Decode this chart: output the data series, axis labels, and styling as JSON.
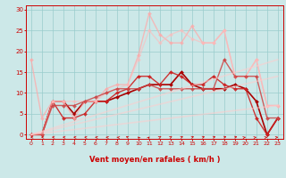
{
  "bg_color": "#cce8e8",
  "grid_color": "#99cccc",
  "xlabel": "Vent moyen/en rafales ( km/h )",
  "xlabel_color": "#cc0000",
  "tick_color": "#cc0000",
  "xlim": [
    -0.5,
    23.5
  ],
  "ylim": [
    -1,
    31
  ],
  "yticks": [
    0,
    5,
    10,
    15,
    20,
    25,
    30
  ],
  "xticks": [
    0,
    1,
    2,
    3,
    4,
    5,
    6,
    7,
    8,
    9,
    10,
    11,
    12,
    13,
    14,
    15,
    16,
    17,
    18,
    19,
    20,
    21,
    22,
    23
  ],
  "series": [
    {
      "x": [
        0,
        1,
        2,
        3,
        4,
        5,
        6,
        7,
        8,
        9,
        10,
        11,
        12,
        13,
        14,
        15,
        16,
        17,
        18,
        19,
        20,
        21,
        22,
        23
      ],
      "y": [
        0,
        0,
        8,
        8,
        5,
        8,
        8,
        8,
        9,
        10,
        11,
        12,
        12,
        12,
        15,
        12,
        11,
        11,
        11,
        12,
        11,
        8,
        0,
        4
      ],
      "color": "#aa0000",
      "alpha": 1.0,
      "lw": 1.2,
      "marker": "D",
      "ms": 2.0
    },
    {
      "x": [
        0,
        1,
        2,
        3,
        4,
        5,
        6,
        7,
        8,
        9,
        10,
        11,
        12,
        13,
        14,
        15,
        16,
        17,
        18,
        19,
        20,
        21,
        22,
        23
      ],
      "y": [
        0,
        0,
        8,
        4,
        4,
        5,
        8,
        8,
        10,
        11,
        14,
        14,
        12,
        15,
        14,
        12,
        12,
        14,
        12,
        11,
        11,
        4,
        0,
        4
      ],
      "color": "#cc2222",
      "alpha": 0.9,
      "lw": 1.0,
      "marker": "D",
      "ms": 2.0
    },
    {
      "x": [
        0,
        1,
        2,
        3,
        4,
        5,
        6,
        7,
        8,
        9,
        10,
        11,
        12,
        13,
        14,
        15,
        16,
        17,
        18,
        19,
        20,
        21,
        22,
        23
      ],
      "y": [
        18,
        4,
        8,
        8,
        4,
        8,
        8,
        11,
        12,
        12,
        19,
        29,
        24,
        22,
        22,
        26,
        22,
        22,
        25,
        14,
        14,
        18,
        7,
        7
      ],
      "color": "#ffaaaa",
      "alpha": 0.75,
      "lw": 1.0,
      "marker": "D",
      "ms": 2.0
    },
    {
      "x": [
        0,
        1,
        2,
        3,
        4,
        5,
        6,
        7,
        8,
        9,
        10,
        11,
        12,
        13,
        14,
        15,
        16,
        17,
        18,
        19,
        20,
        21,
        22,
        23
      ],
      "y": [
        0,
        0,
        8,
        8,
        8,
        8,
        8,
        10,
        11,
        12,
        18,
        25,
        22,
        24,
        25,
        23,
        22,
        22,
        25,
        14,
        14,
        18,
        7,
        7
      ],
      "color": "#ffbbbb",
      "alpha": 0.6,
      "lw": 1.0,
      "marker": "D",
      "ms": 2.0
    },
    {
      "x": [
        0,
        1,
        2,
        3,
        4,
        5,
        6,
        7,
        8,
        9,
        10,
        11,
        12,
        13,
        14,
        15,
        16,
        17,
        18,
        19,
        20,
        21,
        22,
        23
      ],
      "y": [
        0,
        0,
        7,
        7,
        7,
        8,
        9,
        10,
        11,
        11,
        11,
        12,
        11,
        11,
        11,
        11,
        11,
        11,
        18,
        14,
        14,
        14,
        4,
        4
      ],
      "color": "#cc4444",
      "alpha": 0.85,
      "lw": 1.0,
      "marker": "D",
      "ms": 2.0
    },
    {
      "x": [
        0,
        23
      ],
      "y": [
        0,
        18
      ],
      "color": "#ffcccc",
      "alpha": 0.55,
      "lw": 1.2,
      "marker": null,
      "ms": 0
    },
    {
      "x": [
        0,
        23
      ],
      "y": [
        0,
        14
      ],
      "color": "#ffcccc",
      "alpha": 0.55,
      "lw": 1.2,
      "marker": null,
      "ms": 0
    },
    {
      "x": [
        0,
        23
      ],
      "y": [
        0,
        7
      ],
      "color": "#ffcccc",
      "alpha": 0.55,
      "lw": 1.2,
      "marker": null,
      "ms": 0
    }
  ],
  "arrow_angles": [
    180,
    178,
    175,
    170,
    165,
    160,
    155,
    150,
    140,
    125,
    100,
    80,
    65,
    58,
    52,
    50,
    48,
    46,
    44,
    42,
    40,
    38,
    35,
    30
  ],
  "arrow_color": "#cc0000"
}
